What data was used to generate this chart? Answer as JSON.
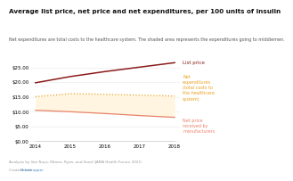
{
  "title": "Average list price, net price and net expenditures, per 100 units of insulin",
  "subtitle": "Net expenditures are total costs to the healthcare system. The shaded area represents the expenditures going to middlemen.",
  "years": [
    2014,
    2015,
    2016,
    2017,
    2018
  ],
  "list_price": [
    19.8,
    21.9,
    23.6,
    25.1,
    26.6
  ],
  "net_expenditures": [
    15.1,
    16.1,
    15.9,
    15.6,
    15.3
  ],
  "net_price_manufacturers": [
    10.5,
    10.0,
    9.4,
    8.7,
    8.1
  ],
  "zero_line": [
    0.0,
    0.0,
    0.0,
    0.0,
    0.0
  ],
  "list_price_color": "#8B1A1A",
  "net_exp_color": "#E8A020",
  "net_price_color": "#E8826A",
  "shaded_color": "#FFF5E0",
  "zero_line_color": "#cccccc",
  "label_list_price": "List price",
  "label_net_exp": "Net\nexpenditures\n(total costs to\nthe healthcare\nsystem)",
  "label_net_price": "Net price\nreceived by\nmanufacturers",
  "ylim": [
    -0.5,
    29
  ],
  "yticks": [
    0.0,
    5.0,
    10.0,
    15.0,
    20.0,
    25.0
  ],
  "footer1": "Analysis by Van Nuys, Ribero, Ryan, and Sood (JAMA Health Forum 2021)",
  "footer2_color": "#4488cc",
  "bg_color": "#ffffff"
}
